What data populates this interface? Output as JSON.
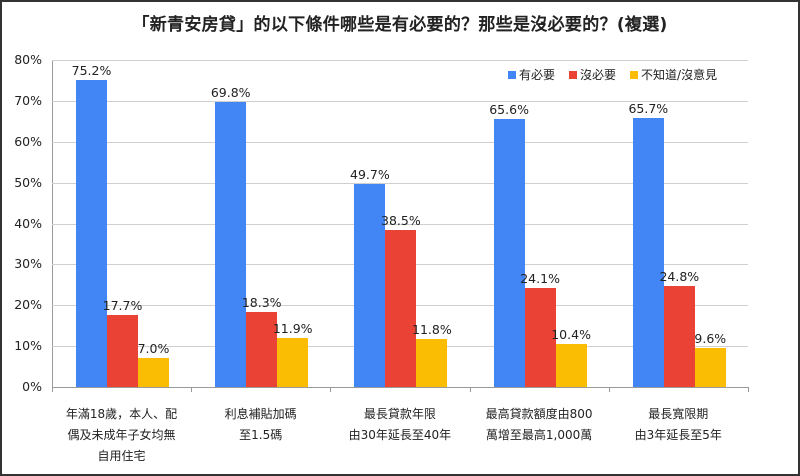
{
  "chart_data": {
    "type": "bar",
    "title": "「新青安房貸」的以下條件哪些是有必要的？那些是沒必要的？(複選)",
    "xlabel": "",
    "ylabel": "",
    "ylim": [
      0,
      80
    ],
    "yticks": [
      "0%",
      "10%",
      "20%",
      "30%",
      "40%",
      "50%",
      "60%",
      "70%",
      "80%"
    ],
    "grid": true,
    "legend_position": "top-right",
    "categories": [
      [
        "年滿18歲，本人、配",
        "偶及未成年子女均無",
        "自用住宅"
      ],
      [
        "利息補貼加碼",
        "至1.5碼"
      ],
      [
        "最長貸款年限",
        "由30年延長至40年"
      ],
      [
        "最高貸款額度由800",
        "萬增至最高1,000萬"
      ],
      [
        "最長寬限期",
        "由3年延長至5年"
      ]
    ],
    "series": [
      {
        "name": "有必要",
        "color": "#4285F4",
        "values": [
          75.2,
          69.8,
          49.7,
          65.6,
          65.7
        ],
        "labels": [
          "75.2%",
          "69.8%",
          "49.7%",
          "65.6%",
          "65.7%"
        ]
      },
      {
        "name": "沒必要",
        "color": "#EA4335",
        "values": [
          17.7,
          18.3,
          38.5,
          24.1,
          24.8
        ],
        "labels": [
          "17.7%",
          "18.3%",
          "38.5%",
          "24.1%",
          "24.8%"
        ]
      },
      {
        "name": "不知道/沒意見",
        "color": "#FBBC04",
        "values": [
          7.0,
          11.9,
          11.8,
          10.4,
          9.6
        ],
        "labels": [
          "7.0%",
          "11.9%",
          "11.8%",
          "10.4%",
          "9.6%"
        ]
      }
    ]
  }
}
